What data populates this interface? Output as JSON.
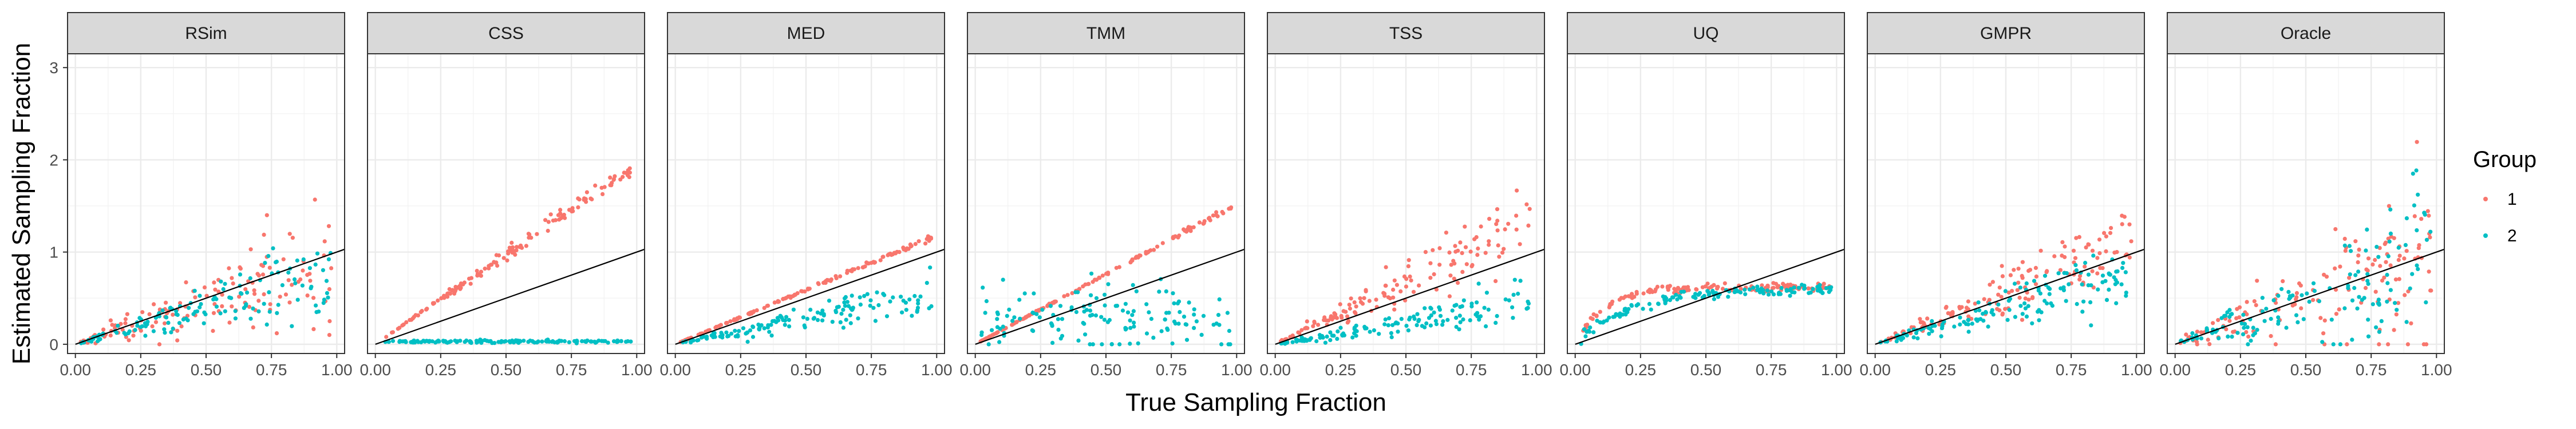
{
  "chart_data": {
    "type": "scatter",
    "xlabel": "True Sampling Fraction",
    "ylabel": "Estimated Sampling Fraction",
    "xlim": [
      -0.03,
      1.03
    ],
    "ylim": [
      -0.1,
      3.15
    ],
    "x_ticks": [
      "0.00",
      "0.25",
      "0.50",
      "0.75",
      "1.00"
    ],
    "y_ticks": [
      "0",
      "1",
      "2",
      "3"
    ],
    "x_tick_values": [
      0,
      0.25,
      0.5,
      0.75,
      1.0
    ],
    "y_tick_values": [
      0,
      1,
      2,
      3
    ],
    "grid": true,
    "reference_line": {
      "slope": 1,
      "intercept": 0,
      "color": "#000000"
    },
    "legend": {
      "title": "Group",
      "position": "right",
      "entries": [
        {
          "label": "1",
          "color": "#F8766D"
        },
        {
          "label": "2",
          "color": "#00BFC4"
        }
      ]
    },
    "points_per_group": 140,
    "panels": [
      {
        "name": "RSim",
        "series": [
          {
            "name": "1",
            "slope": 0.95,
            "noise": 0.4,
            "spread": "mult",
            "cap": 3.0
          },
          {
            "name": "2",
            "slope": 0.8,
            "noise": 0.35,
            "spread": "mult",
            "cap": 3.0
          }
        ]
      },
      {
        "name": "CSS",
        "series": [
          {
            "name": "1",
            "slope": 1.95,
            "noise": 0.03,
            "spread": "mult",
            "cap": 3.0
          },
          {
            "name": "2",
            "slope": 0.0,
            "offset": 0.03,
            "noise": 0.008,
            "spread": "add",
            "cap": 3.0
          }
        ]
      },
      {
        "name": "MED",
        "series": [
          {
            "name": "1",
            "slope": 1.18,
            "noise": 0.015,
            "spread": "mult",
            "cap": 3.0
          },
          {
            "name": "2",
            "slope": 0.55,
            "noise": 0.25,
            "spread": "mult",
            "cap": 1.5
          }
        ]
      },
      {
        "name": "TMM",
        "series": [
          {
            "name": "1",
            "slope": 1.52,
            "noise": 0.01,
            "spread": "mult",
            "cap": 3.0
          },
          {
            "name": "2",
            "slope": 0.0,
            "offset": 0.28,
            "noise": 0.18,
            "spread": "add",
            "cap": 3.0
          }
        ]
      },
      {
        "name": "TSS",
        "series": [
          {
            "name": "1",
            "slope": 1.35,
            "noise": 0.18,
            "spread": "mult",
            "cap": 1.95
          },
          {
            "name": "2",
            "slope": 0.45,
            "noise": 0.3,
            "spread": "mult",
            "cap": 3.0
          }
        ]
      },
      {
        "name": "UQ",
        "series": [
          {
            "name": "1",
            "saturate": 0.62,
            "rate": 9,
            "noise": 0.02,
            "spread": "add",
            "cap": 3.0
          },
          {
            "name": "2",
            "saturate": 0.6,
            "rate": 5,
            "noise": 0.03,
            "spread": "add",
            "cap": 3.0
          }
        ]
      },
      {
        "name": "GMPR",
        "series": [
          {
            "name": "1",
            "slope": 1.15,
            "noise": 0.2,
            "spread": "mult",
            "cap": 1.9
          },
          {
            "name": "2",
            "slope": 0.8,
            "noise": 0.25,
            "spread": "mult",
            "cap": 3.0
          }
        ]
      },
      {
        "name": "Oracle",
        "series": [
          {
            "name": "1",
            "slope": 1.0,
            "noise": 0.5,
            "spread": "mult",
            "cap": 2.4
          },
          {
            "name": "2",
            "slope": 1.0,
            "noise": 0.42,
            "spread": "mult",
            "cap": 2.2
          }
        ]
      }
    ]
  }
}
